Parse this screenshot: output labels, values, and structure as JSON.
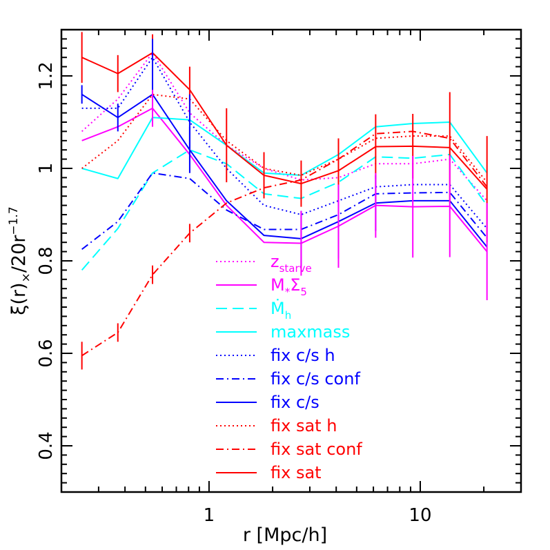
{
  "chart_data": {
    "type": "line",
    "xlabel": "r  [Mpc/h]",
    "ylabel": {
      "main": "ξ(r)",
      "sub": "×",
      "mid": "/20r",
      "sup": "−1.7"
    },
    "xscale": "log",
    "xlim": [
      0.2,
      30
    ],
    "ylim": [
      0.3,
      1.3
    ],
    "grid": false,
    "legend_placement": "bottom-center",
    "x_tick_labels": [
      {
        "value": 1,
        "label": "1"
      },
      {
        "value": 10,
        "label": "10"
      }
    ],
    "y_tick_labels": [
      {
        "value": 0.4,
        "label": "0.4"
      },
      {
        "value": 0.6,
        "label": "0.6"
      },
      {
        "value": 0.8,
        "label": "0.8"
      },
      {
        "value": 1.0,
        "label": "1"
      },
      {
        "value": 1.2,
        "label": "1.2"
      }
    ],
    "x": [
      0.25,
      0.37,
      0.54,
      0.81,
      1.21,
      1.82,
      2.73,
      4.1,
      6.15,
      9.22,
      13.8,
      20.7
    ],
    "series": [
      {
        "name": "z_starve",
        "label_main": "z",
        "label_sub": "starve",
        "color": "#ff00ff",
        "dash": "dotted",
        "values": [
          1.08,
          1.15,
          1.25,
          1.12,
          1.05,
          1.0,
          0.975,
          0.98,
          1.01,
          1.01,
          1.02,
          0.93
        ]
      },
      {
        "name": "M_*Σ_5",
        "label_main": "M",
        "label_sub": "*",
        "label_main2": "Σ",
        "label_sub2": "5",
        "color": "#ff00ff",
        "dash": "solid",
        "values": [
          1.06,
          1.09,
          1.13,
          1.03,
          0.92,
          0.84,
          0.838,
          0.875,
          0.92,
          0.917,
          0.918,
          0.82
        ]
      },
      {
        "name": "Ṁ_h",
        "label_main": "Ṁ",
        "label_sub": "h",
        "color": "#00ffff",
        "dash": "dashed",
        "values": [
          0.78,
          0.87,
          0.99,
          1.04,
          1.01,
          0.945,
          0.935,
          0.97,
          1.025,
          1.022,
          1.03,
          0.92
        ]
      },
      {
        "name": "maxmass",
        "label_main": "maxmass",
        "color": "#00ffff",
        "dash": "solid",
        "values": [
          1.0,
          0.978,
          1.11,
          1.105,
          1.05,
          0.99,
          0.985,
          1.03,
          1.09,
          1.097,
          1.1,
          0.99
        ]
      },
      {
        "name": "fix c/s h",
        "label_main": "fix c/s h",
        "color": "#0000ff",
        "dash": "dotted",
        "values": [
          1.13,
          1.13,
          1.24,
          1.1,
          1.0,
          0.92,
          0.9,
          0.93,
          0.96,
          0.965,
          0.965,
          0.87
        ]
      },
      {
        "name": "fix c/s conf",
        "label_main": "fix c/s conf",
        "color": "#0000ff",
        "dash": "dashdot",
        "values": [
          0.825,
          0.885,
          0.99,
          0.978,
          0.91,
          0.868,
          0.868,
          0.9,
          0.945,
          0.947,
          0.948,
          0.85
        ]
      },
      {
        "name": "fix c/s",
        "label_main": "fix c/s",
        "color": "#0000ff",
        "dash": "solid",
        "values": [
          1.16,
          1.11,
          1.16,
          1.04,
          0.93,
          0.855,
          0.848,
          0.885,
          0.925,
          0.93,
          0.93,
          0.83
        ]
      },
      {
        "name": "fix sat h",
        "label_main": "fix sat h",
        "color": "#ff0000",
        "dash": "dotted",
        "values": [
          1.0,
          1.06,
          1.16,
          1.15,
          1.06,
          1.0,
          0.985,
          1.02,
          1.065,
          1.07,
          1.07,
          0.97
        ]
      },
      {
        "name": "fix sat conf",
        "label_main": "fix sat conf",
        "color": "#ff0000",
        "dash": "dashdot",
        "values": [
          0.595,
          0.645,
          0.77,
          0.86,
          0.925,
          0.958,
          0.975,
          1.02,
          1.075,
          1.08,
          1.065,
          0.96
        ]
      },
      {
        "name": "fix sat",
        "label_main": "fix sat",
        "color": "#ff0000",
        "dash": "solid",
        "values": [
          1.24,
          1.205,
          1.25,
          1.17,
          1.05,
          0.985,
          0.967,
          0.995,
          1.047,
          1.048,
          1.045,
          0.955
        ]
      }
    ],
    "error_bars": [
      {
        "series": "fix sat",
        "color": "#ff0000",
        "errors": [
          0.055,
          0.04,
          0.04,
          0.05,
          0.08,
          0.05,
          0.05,
          0.07,
          0.07,
          0.07,
          0.12,
          0.115
        ]
      },
      {
        "series": "fix c/s",
        "color": "#0000ff",
        "errors": [
          0.02,
          0.03,
          0.04,
          0.05,
          0.0,
          0.0,
          0.06,
          0.08,
          0.06,
          0.0,
          0.0,
          0.0
        ]
      },
      {
        "series": "fix sat conf",
        "color": "#ff0000",
        "errors": [
          0.03,
          0.02,
          0.02,
          0.02,
          0.0,
          0.0,
          0.0,
          0.0,
          0.0,
          0.0,
          0.0,
          0.0
        ]
      },
      {
        "series": "M_*Σ_5",
        "color": "#ff00ff",
        "errors": [
          0.0,
          0.0,
          0.04,
          0.0,
          0.0,
          0.0,
          0.07,
          0.09,
          0.07,
          0.11,
          0.11,
          0.105
        ]
      },
      {
        "series": "fix c/s h",
        "color": "#0000ff",
        "errors": [
          0.0,
          0.0,
          0.04,
          0.06,
          0.0,
          0.0,
          0.0,
          0.0,
          0.0,
          0.0,
          0.0,
          0.0
        ]
      }
    ]
  }
}
